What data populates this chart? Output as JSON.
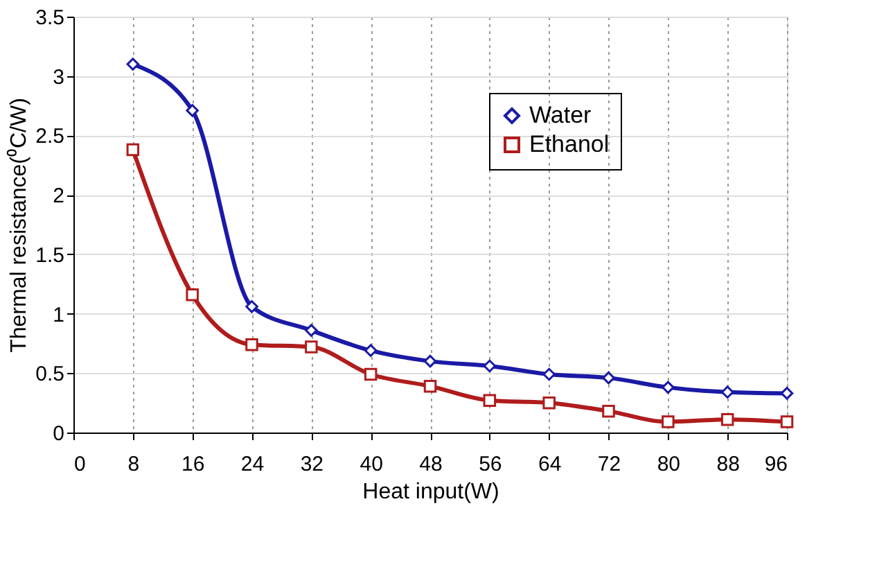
{
  "chart_data": {
    "type": "line",
    "xlabel": "Heat input(W)",
    "ylabel": "Thermal resistance(⁰C/W)",
    "x": [
      8,
      16,
      24,
      32,
      40,
      48,
      56,
      64,
      72,
      80,
      88,
      96
    ],
    "xlim": [
      0,
      96
    ],
    "xticks": [
      0,
      8,
      16,
      24,
      32,
      40,
      48,
      56,
      64,
      72,
      80,
      88,
      96
    ],
    "ylim": [
      0,
      3.5
    ],
    "yticks": [
      0,
      0.5,
      1,
      1.5,
      2,
      2.5,
      3,
      3.5
    ],
    "grid": true,
    "legend": "top right",
    "line_style": "solid",
    "series": [
      {
        "name": "Water",
        "color": "#1a1aa6",
        "marker": "diamond",
        "values": [
          3.1,
          2.71,
          1.06,
          0.86,
          0.69,
          0.6,
          0.56,
          0.49,
          0.46,
          0.38,
          0.34,
          0.33
        ]
      },
      {
        "name": "Ethanol",
        "color": "#b01c1c",
        "marker": "square",
        "values": [
          2.38,
          1.16,
          0.74,
          0.72,
          0.49,
          0.39,
          0.27,
          0.25,
          0.18,
          0.09,
          0.11,
          0.09
        ]
      }
    ]
  }
}
